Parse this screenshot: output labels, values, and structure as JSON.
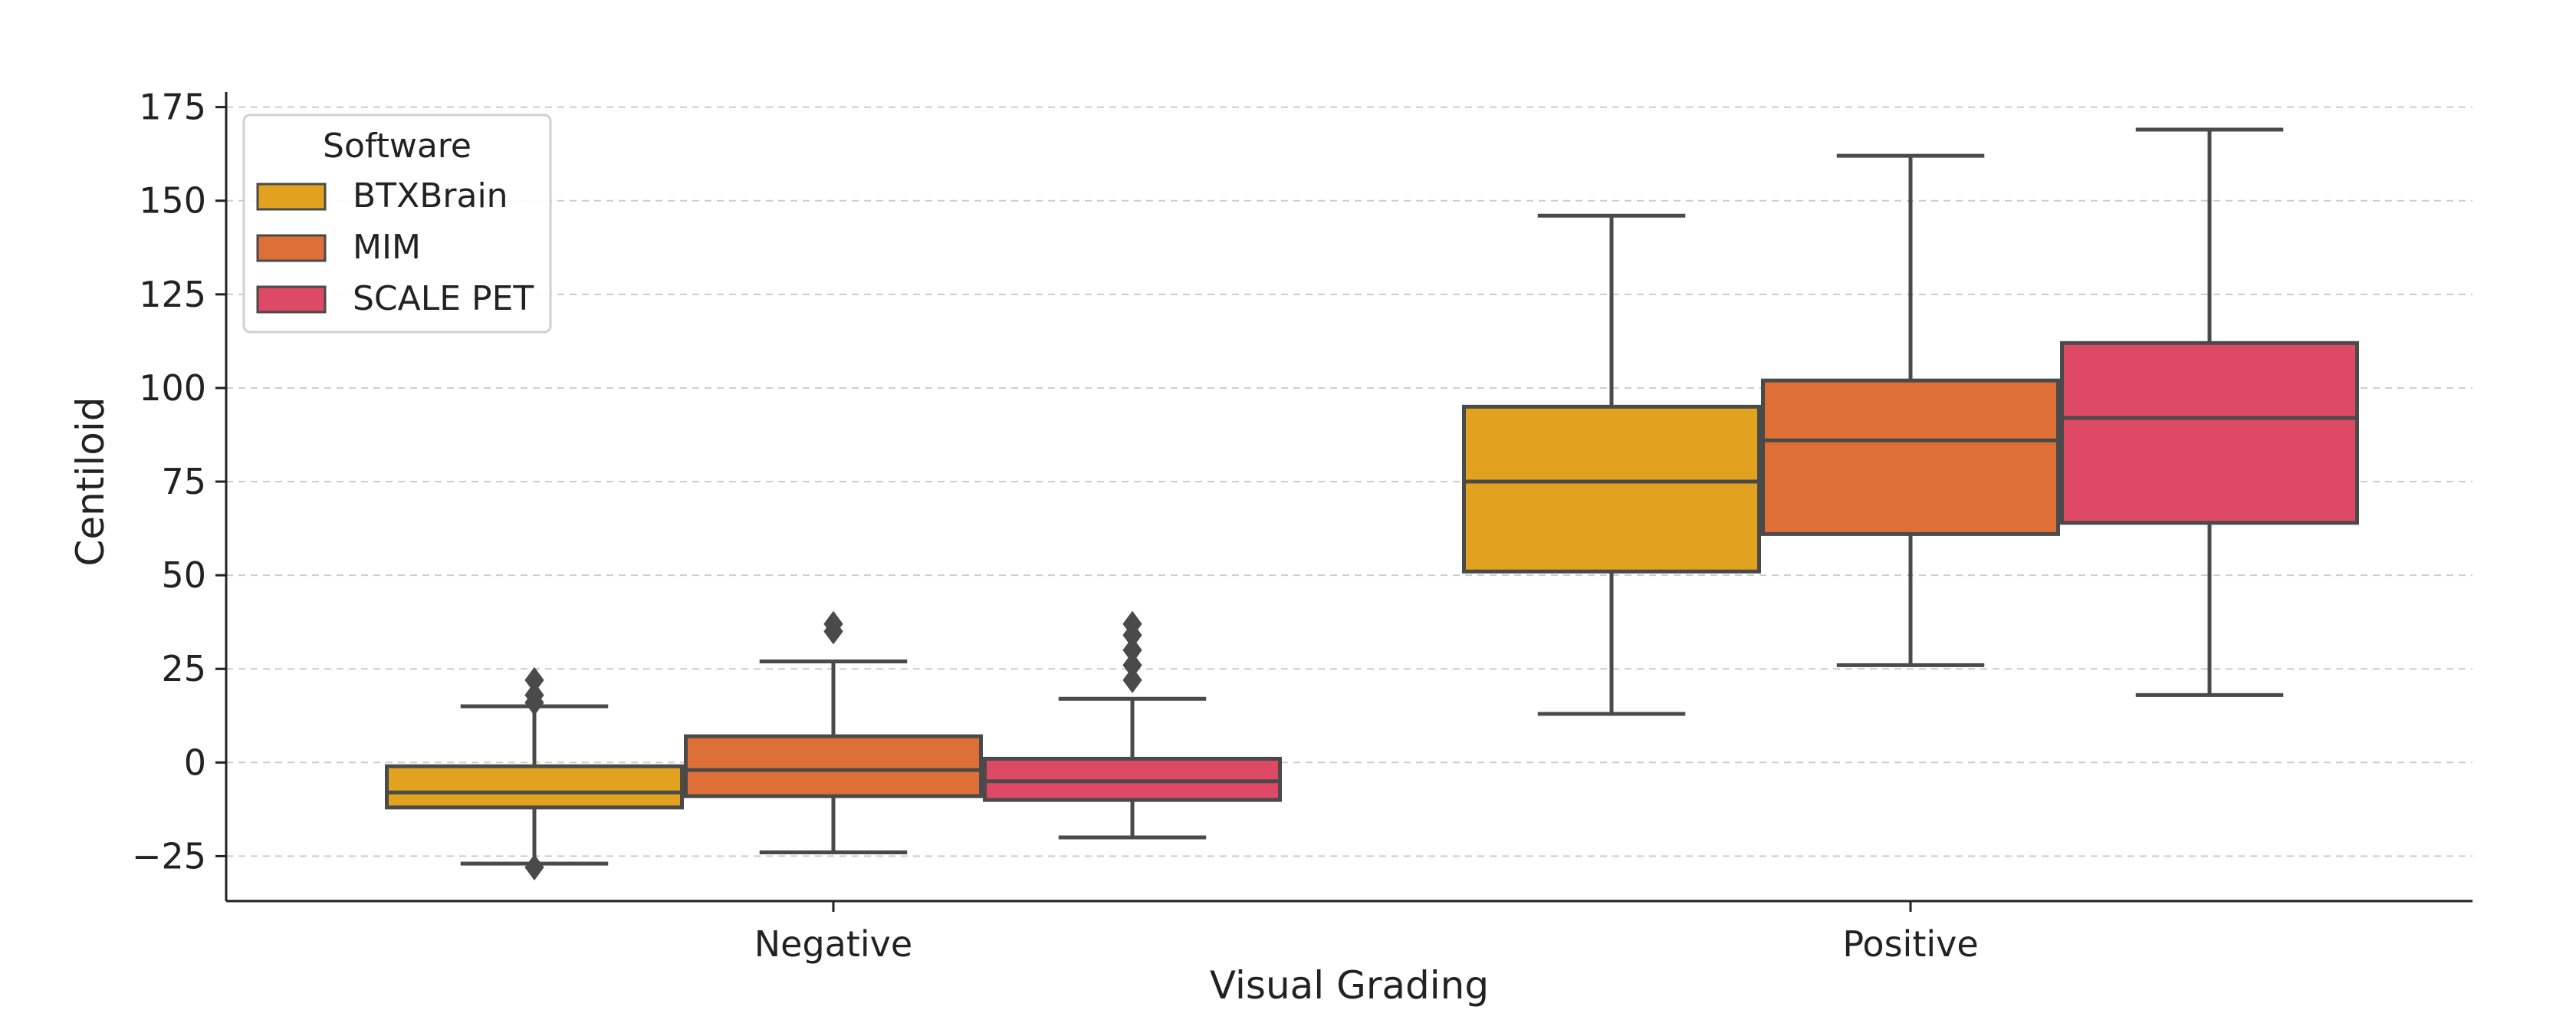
{
  "chart_data": {
    "type": "box",
    "title": "",
    "xlabel": "Visual Grading",
    "ylabel": "Centiloid",
    "ylim": [
      -37,
      178
    ],
    "yticks": [
      -25,
      0,
      25,
      50,
      75,
      100,
      125,
      150,
      175
    ],
    "ytick_labels": [
      "−25",
      "0",
      "25",
      "50",
      "75",
      "100",
      "125",
      "150",
      "175"
    ],
    "grid": "horizontal-dashed",
    "categories": [
      "Negative",
      "Positive"
    ],
    "legend": {
      "title": "Software",
      "placement": "top-left"
    },
    "series": [
      {
        "name": "BTXBrain",
        "color": "#E0A21F",
        "boxes": [
          {
            "whisker_low": -27,
            "q1": -12,
            "median": -8,
            "q3": -1,
            "whisker_high": 15,
            "outliers": [
              -28,
              16,
              18,
              22
            ]
          },
          {
            "whisker_low": 13,
            "q1": 51,
            "median": 75,
            "q3": 95,
            "whisker_high": 146,
            "outliers": []
          }
        ]
      },
      {
        "name": "MIM",
        "color": "#DE6F37",
        "boxes": [
          {
            "whisker_low": -24,
            "q1": -9,
            "median": -2,
            "q3": 7,
            "whisker_high": 27,
            "outliers": [
              35,
              37
            ]
          },
          {
            "whisker_low": 26,
            "q1": 61,
            "median": 86,
            "q3": 102,
            "whisker_high": 162,
            "outliers": []
          }
        ]
      },
      {
        "name": "SCALE PET",
        "color": "#DE4966",
        "boxes": [
          {
            "whisker_low": -20,
            "q1": -10,
            "median": -5,
            "q3": 1,
            "whisker_high": 17,
            "outliers": [
              22,
              26,
              30,
              34,
              37
            ]
          },
          {
            "whisker_low": 18,
            "q1": 64,
            "median": 92,
            "q3": 112,
            "whisker_high": 169,
            "outliers": []
          }
        ]
      }
    ]
  }
}
